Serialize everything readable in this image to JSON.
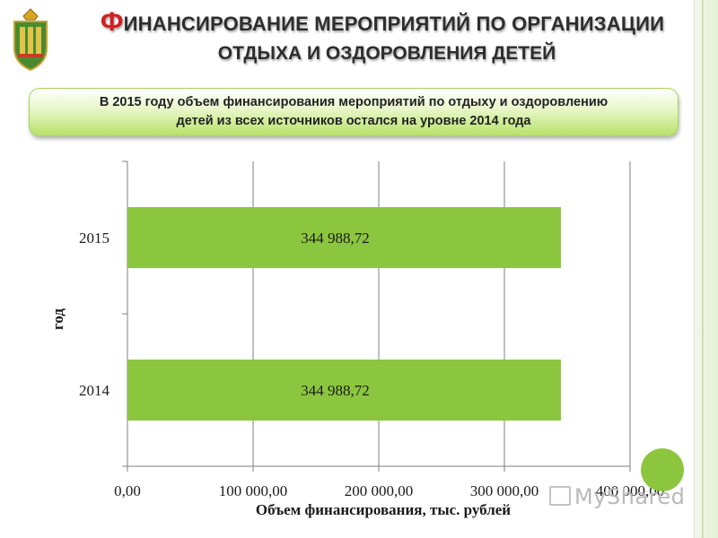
{
  "title": {
    "line1_first": "Ф",
    "line1_rest": "ИНАНСИРОВАНИЕ МЕРОПРИЯТИЙ ПО ОРГАНИЗАЦИИ",
    "line2": "ОТДЫХА И ОЗДОРОВЛЕНИЯ ДЕТЕЙ"
  },
  "callout": {
    "line1": "В 2015 году объем финансирования мероприятий по отдыху и оздоровлению",
    "line2": "детей из всех источников остался на уровне 2014 года"
  },
  "watermark": {
    "text": "MyShared"
  },
  "colors": {
    "bar": "#8cc63f",
    "title_accent": "#d02020",
    "callout_green": "#b7e26a",
    "grid": "#7f7f7f"
  },
  "emblem": {
    "icon": "coat-of-arms-icon"
  },
  "chart_data": {
    "type": "bar",
    "orientation": "horizontal",
    "categories": [
      "2015",
      "2014"
    ],
    "values": [
      344988.72,
      344988.72
    ],
    "data_labels": [
      "344 988,72",
      "344 988,72"
    ],
    "xlabel": "Объем финансирования, тыс. рублей",
    "ylabel": "год",
    "xlim": [
      0,
      400000
    ],
    "x_ticks": [
      0,
      100000,
      200000,
      300000,
      400000
    ],
    "x_tick_labels": [
      "0,00",
      "100 000,00",
      "200 000,00",
      "300 000,00",
      "400 000,00"
    ],
    "grid": true
  }
}
